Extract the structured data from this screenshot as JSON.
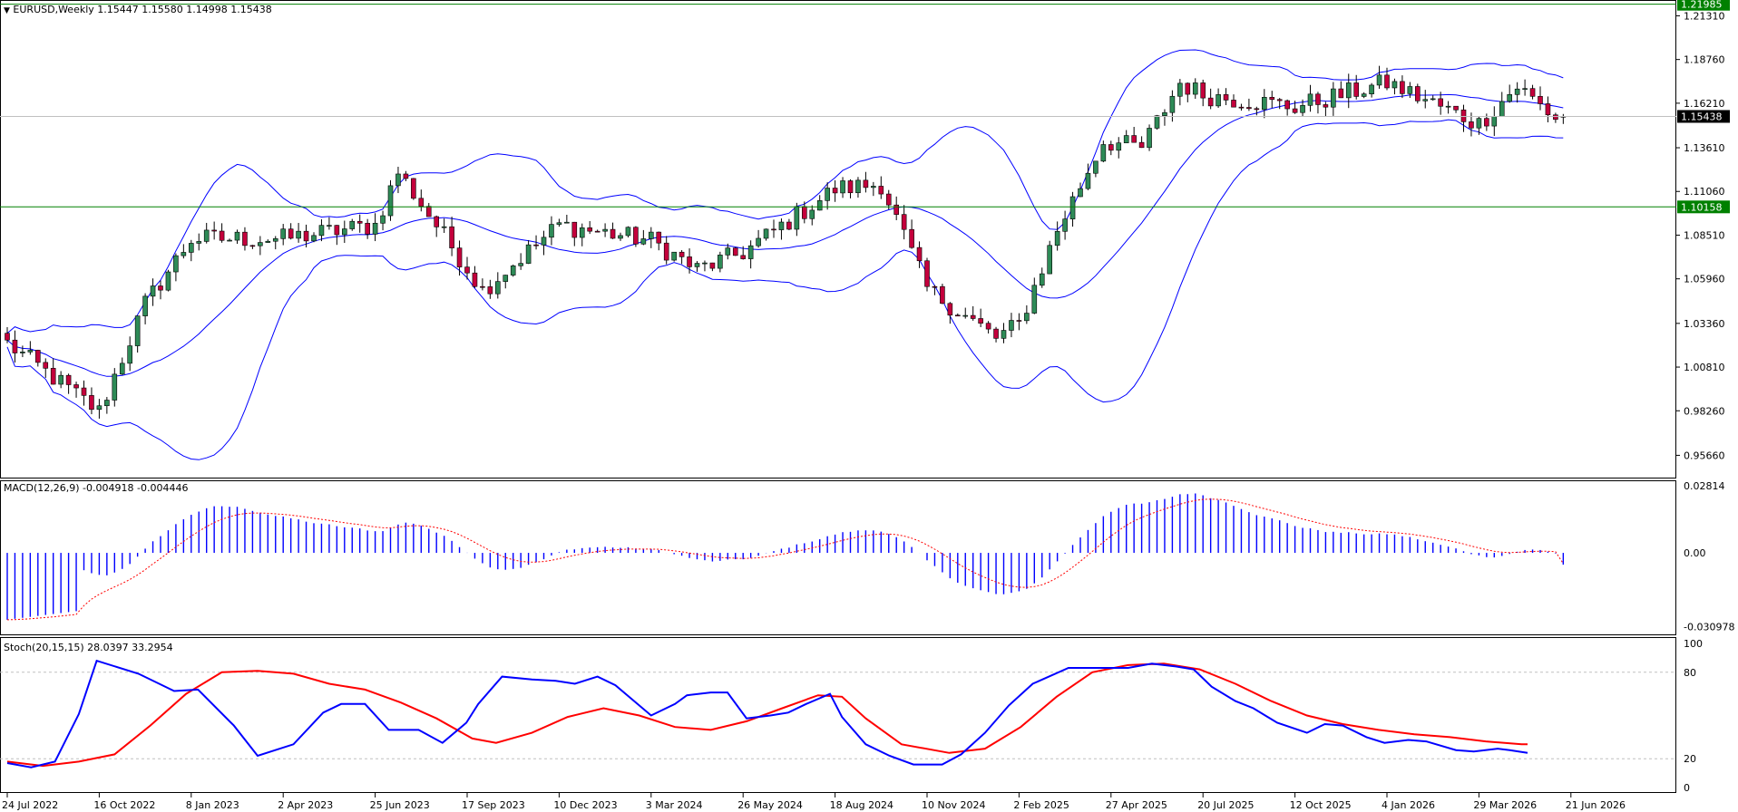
{
  "header": {
    "symbol_line": "EURUSD,Weekly  1.15447 1.15580 1.14998 1.15438",
    "menu_icon": "triangle-down-icon"
  },
  "colors": {
    "bull": "#2e8b57",
    "bear": "#c4003c",
    "bands": "#0000ff",
    "hline": "#008000",
    "macd_hist": "#0000ff",
    "macd_signal": "#ff0000",
    "stoch_main": "#0000ff",
    "stoch_signal": "#ff0000",
    "price_label_bg": "#000000",
    "hline_label_bg": "#008000"
  },
  "price_axis": {
    "ticks": [
      "1.21310",
      "1.18760",
      "1.16210",
      "1.13610",
      "1.11060",
      "1.08510",
      "1.05960",
      "1.03360",
      "1.00810",
      "0.98260",
      "0.95660"
    ],
    "ymin": 0.9436,
    "ymax": 1.2218,
    "current_label": "1.15438",
    "hline_top_label": "1.21985",
    "hline_mid_label": "1.10158"
  },
  "macd_pane": {
    "title": "MACD(12,26,9) -0.004918 -0.004446",
    "ticks": [
      "0.02814",
      "0.00",
      "-0.030978"
    ],
    "ymin": -0.0345,
    "ymax": 0.03
  },
  "stoch_pane": {
    "title": "Stoch(20,15,15) 28.0397 33.2954",
    "ticks": [
      "100",
      "80",
      "20",
      "0"
    ],
    "levels": [
      80,
      20
    ]
  },
  "time_axis": {
    "labels": [
      "24 Jul 2022",
      "16 Oct 2022",
      "8 Jan 2023",
      "2 Apr 2023",
      "25 Jun 2023",
      "17 Sep 2023",
      "10 Dec 2023",
      "3 Mar 2024",
      "26 May 2024",
      "18 Aug 2024",
      "10 Nov 2024",
      "2 Feb 2025",
      "27 Apr 2025",
      "20 Jul 2025",
      "12 Oct 2025",
      "4 Jan 2026",
      "29 Mar 2026",
      "21 Jun 2026"
    ]
  },
  "chart_data": {
    "type": "candlestick",
    "symbol": "EURUSD",
    "timeframe": "Weekly",
    "last_bar": {
      "open": 1.15447,
      "high": 1.1558,
      "low": 1.14998,
      "close": 1.15438
    },
    "ylim": [
      0.9436,
      1.2218
    ],
    "horizontal_lines": [
      1.21985,
      1.10158
    ],
    "price_anchors": [
      {
        "date": "24 Jul 2022",
        "close": 1.022
      },
      {
        "date": "16 Oct 2022",
        "close": 0.982
      },
      {
        "date": "27 Nov 2022",
        "close": 1.045
      },
      {
        "date": "8 Jan 2023",
        "close": 1.083
      },
      {
        "date": "2 Apr 2023",
        "close": 1.083
      },
      {
        "date": "25 Jun 2023",
        "close": 1.091
      },
      {
        "date": "16 Jul 2023",
        "close": 1.122
      },
      {
        "date": "17 Sep 2023",
        "close": 1.066
      },
      {
        "date": "1 Oct 2023",
        "close": 1.053
      },
      {
        "date": "10 Dec 2023",
        "close": 1.091
      },
      {
        "date": "3 Mar 2024",
        "close": 1.082
      },
      {
        "date": "14 Apr 2024",
        "close": 1.065
      },
      {
        "date": "26 May 2024",
        "close": 1.075
      },
      {
        "date": "18 Aug 2024",
        "close": 1.112
      },
      {
        "date": "29 Sep 2024",
        "close": 1.115
      },
      {
        "date": "10 Nov 2024",
        "close": 1.054
      },
      {
        "date": "12 Jan 2025",
        "close": 1.025
      },
      {
        "date": "2 Feb 2025",
        "close": 1.033
      },
      {
        "date": "9 Mar 2025",
        "close": 1.088
      },
      {
        "date": "20 Apr 2025",
        "close": 1.14
      },
      {
        "date": "25 May 2025",
        "close": 1.136
      },
      {
        "date": "29 Jun 2025",
        "close": 1.174
      },
      {
        "date": "20 Jul 2025",
        "close": 1.167
      },
      {
        "date": "12 Oct 2025",
        "close": 1.16
      },
      {
        "date": "4 Jan 2026",
        "close": 1.174
      },
      {
        "date": "29 Mar 2026",
        "close": 1.15
      },
      {
        "date": "3 May 2026",
        "close": 1.172
      },
      {
        "date": "21 Jun 2026",
        "close": 1.146
      },
      {
        "date": "12 Jul 2026",
        "close": 1.154
      }
    ],
    "indicators": {
      "bollinger": {
        "period": 20
      },
      "macd": {
        "params": [
          12,
          26,
          9
        ],
        "main": -0.004918,
        "signal": -0.004446
      },
      "stochastic": {
        "params": [
          20,
          15,
          15
        ],
        "main": 28.0397,
        "signal": 33.2954,
        "main_points": [
          [
            0,
            17
          ],
          [
            20,
            14
          ],
          [
            40,
            18
          ],
          [
            60,
            51
          ],
          [
            75,
            88
          ],
          [
            110,
            79
          ],
          [
            140,
            67
          ],
          [
            160,
            68
          ],
          [
            190,
            43
          ],
          [
            210,
            22
          ],
          [
            240,
            30
          ],
          [
            265,
            52
          ],
          [
            280,
            58
          ],
          [
            300,
            58
          ],
          [
            320,
            40
          ],
          [
            345,
            40
          ],
          [
            365,
            31
          ],
          [
            385,
            45
          ],
          [
            395,
            58
          ],
          [
            415,
            77
          ],
          [
            440,
            75
          ],
          [
            460,
            74
          ],
          [
            476,
            72
          ],
          [
            495,
            77
          ],
          [
            510,
            71
          ],
          [
            540,
            50
          ],
          [
            560,
            58
          ],
          [
            570,
            64
          ],
          [
            590,
            66
          ],
          [
            604,
            66
          ],
          [
            620,
            48
          ],
          [
            640,
            50
          ],
          [
            655,
            52
          ],
          [
            670,
            58
          ],
          [
            690,
            65
          ],
          [
            700,
            49
          ],
          [
            720,
            30
          ],
          [
            740,
            22
          ],
          [
            760,
            16
          ],
          [
            784,
            16
          ],
          [
            800,
            23
          ],
          [
            820,
            38
          ],
          [
            840,
            57
          ],
          [
            860,
            72
          ],
          [
            890,
            83
          ],
          [
            920,
            83
          ],
          [
            940,
            83
          ],
          [
            960,
            86
          ],
          [
            980,
            84
          ],
          [
            995,
            82
          ],
          [
            1010,
            70
          ],
          [
            1030,
            60
          ],
          [
            1045,
            55
          ],
          [
            1065,
            45
          ],
          [
            1090,
            38
          ],
          [
            1105,
            44
          ],
          [
            1120,
            43
          ],
          [
            1140,
            35
          ],
          [
            1155,
            31
          ],
          [
            1175,
            33
          ],
          [
            1190,
            32
          ],
          [
            1215,
            26
          ],
          [
            1230,
            25
          ],
          [
            1250,
            27
          ],
          [
            1260,
            26
          ],
          [
            1275,
            24
          ]
        ],
        "signal_points": [
          [
            0,
            18
          ],
          [
            30,
            15
          ],
          [
            60,
            18
          ],
          [
            90,
            23
          ],
          [
            120,
            43
          ],
          [
            150,
            65
          ],
          [
            180,
            80
          ],
          [
            210,
            81
          ],
          [
            240,
            79
          ],
          [
            270,
            72
          ],
          [
            300,
            68
          ],
          [
            330,
            59
          ],
          [
            360,
            48
          ],
          [
            390,
            34
          ],
          [
            410,
            31
          ],
          [
            440,
            38
          ],
          [
            470,
            49
          ],
          [
            500,
            55
          ],
          [
            530,
            50
          ],
          [
            560,
            42
          ],
          [
            590,
            40
          ],
          [
            620,
            46
          ],
          [
            650,
            55
          ],
          [
            680,
            64
          ],
          [
            700,
            63
          ],
          [
            720,
            48
          ],
          [
            750,
            30
          ],
          [
            790,
            24
          ],
          [
            820,
            27
          ],
          [
            850,
            42
          ],
          [
            880,
            63
          ],
          [
            910,
            80
          ],
          [
            940,
            85
          ],
          [
            970,
            86
          ],
          [
            1000,
            82
          ],
          [
            1030,
            72
          ],
          [
            1060,
            60
          ],
          [
            1090,
            50
          ],
          [
            1120,
            44
          ],
          [
            1150,
            40
          ],
          [
            1180,
            37
          ],
          [
            1210,
            35
          ],
          [
            1240,
            32
          ],
          [
            1270,
            30
          ],
          [
            1275,
            30
          ]
        ]
      }
    }
  }
}
